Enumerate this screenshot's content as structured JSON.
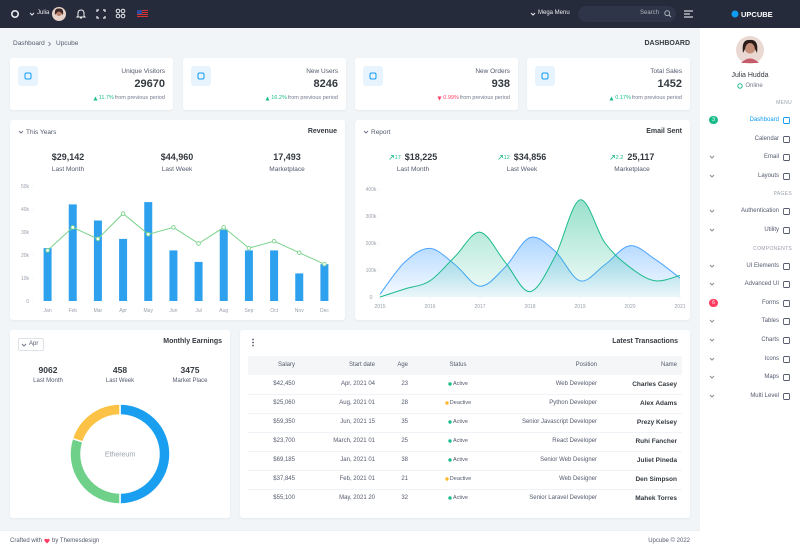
{
  "topbar": {
    "user": "Julia",
    "mega_menu": "Mega Menu",
    "search": "Search",
    "logo": "UPCUBE"
  },
  "sidebar": {
    "profile_name": "Julia Hudda",
    "status": "Online",
    "sections": [
      {
        "title": "MENU",
        "items": [
          {
            "label": "Dashboard",
            "badge": 3,
            "badge_color": "#1cbb8c",
            "active": true
          },
          {
            "label": "Calendar"
          },
          {
            "label": "Email",
            "has_submenu": true
          },
          {
            "label": "Layouts",
            "has_submenu": true
          }
        ]
      },
      {
        "title": "PAGES",
        "items": [
          {
            "label": "Authentication",
            "has_submenu": true
          },
          {
            "label": "Utility",
            "has_submenu": true
          }
        ]
      },
      {
        "title": "COMPONENTS",
        "items": [
          {
            "label": "UI Elements",
            "has_submenu": true
          },
          {
            "label": "Advanced UI",
            "has_submenu": true
          },
          {
            "label": "Forms",
            "badge": 6,
            "badge_color": "#ff3d60"
          },
          {
            "label": "Tables",
            "has_submenu": true
          },
          {
            "label": "Charts",
            "has_submenu": true
          },
          {
            "label": "Icons",
            "has_submenu": true
          },
          {
            "label": "Maps",
            "has_submenu": true
          },
          {
            "label": "Multi Level",
            "has_submenu": true
          }
        ]
      }
    ]
  },
  "breadcrumb": {
    "items": [
      "Dashboard",
      "Upcube"
    ],
    "page_title": "DASHBOARD"
  },
  "stats": [
    {
      "label": "Unique Visitors",
      "value": 29670,
      "change": "11.7%",
      "trend": "up",
      "note": "from previous period"
    },
    {
      "label": "New Users",
      "value": 8246,
      "change": "16.2%",
      "trend": "up",
      "note": "from previous period"
    },
    {
      "label": "New Orders",
      "value": 938,
      "change": "0.99%",
      "trend": "down",
      "note": "from previous period"
    },
    {
      "label": "Total Sales",
      "value": 1452,
      "change": "0.17%",
      "trend": "up",
      "note": "from previous period"
    }
  ],
  "revenue": {
    "filter": "This Years",
    "title": "Revenue",
    "summary": [
      {
        "value": "$29,142",
        "label": "Last Month"
      },
      {
        "value": "$44,960",
        "label": "Last Week"
      },
      {
        "value": "17,493",
        "label": "Marketplace"
      }
    ],
    "chart": {
      "type": "bar",
      "categories": [
        "Jan",
        "Feb",
        "Mar",
        "Apr",
        "May",
        "Jun",
        "Jul",
        "Aug",
        "Sep",
        "Oct",
        "Nov",
        "Dec"
      ],
      "series": [
        {
          "type": "bar",
          "color": "#2ea1ee",
          "values": [
            23000,
            42000,
            35000,
            27000,
            43000,
            22000,
            17000,
            31000,
            22000,
            22000,
            12000,
            16000
          ]
        },
        {
          "type": "line",
          "color": "#7bd38c",
          "values": [
            22000,
            32000,
            27000,
            38000,
            29000,
            32000,
            25000,
            32000,
            23000,
            26000,
            21000,
            16000
          ]
        }
      ],
      "ylim": [
        0,
        50000
      ],
      "yticks": [
        0,
        {
          "value": 10000,
          "label": "10k"
        },
        {
          "value": 20000,
          "label": "20k"
        },
        {
          "value": 30000,
          "label": "30k"
        },
        {
          "value": 40000,
          "label": "40k"
        },
        {
          "value": 50000,
          "label": "50k"
        }
      ]
    }
  },
  "report": {
    "filter": "Report",
    "title": "Email Sent",
    "summary": [
      {
        "change": 17,
        "value": "$18,225",
        "label": "Last Month"
      },
      {
        "change": 12,
        "value": "$34,856",
        "label": "Last Week"
      },
      {
        "change": 2.2,
        "value": "25,117",
        "label": "Marketplace"
      }
    ],
    "chart": {
      "type": "area",
      "x": [
        2015,
        2015.5,
        2016,
        2016.5,
        2017,
        2017.5,
        2018,
        2018.5,
        2019,
        2019.5,
        2020,
        2020.5,
        2021
      ],
      "series": [
        {
          "color": "#4aa3ff",
          "values": [
            10000,
            130000,
            180000,
            120000,
            40000,
            110000,
            220000,
            170000,
            60000,
            120000,
            190000,
            140000,
            70000
          ]
        },
        {
          "color": "#1cbb8c",
          "values": [
            0,
            30000,
            60000,
            150000,
            240000,
            130000,
            20000,
            150000,
            360000,
            200000,
            110000,
            60000,
            80000
          ]
        }
      ],
      "xlim": [
        2015,
        2021
      ],
      "xticks": [
        2015,
        2016,
        2017,
        2018,
        2019,
        2020,
        2021
      ],
      "ylim": [
        0,
        400000
      ],
      "yticks": [
        0,
        {
          "value": 100000,
          "label": "100k"
        },
        {
          "value": 200000,
          "label": "200k"
        },
        {
          "value": 300000,
          "label": "300k"
        },
        {
          "value": 400000,
          "label": "400k"
        }
      ]
    }
  },
  "earnings": {
    "filter": "Apr",
    "title": "Monthly Earnings",
    "summary": [
      {
        "value": 9062,
        "label": "Last Month"
      },
      {
        "value": 458,
        "label": "Last Week"
      },
      {
        "value": 3475,
        "label": "Market Place"
      }
    ],
    "chart": {
      "type": "donut",
      "center_label": "Ethereum",
      "values": [
        50,
        30,
        20
      ],
      "colors": [
        "#1a9ff0",
        "#6fd08a",
        "#fcc246"
      ]
    }
  },
  "transactions": {
    "title": "Latest Transactions",
    "headers": {
      "salary": "Salary",
      "start_date": "Start date",
      "age": "Age",
      "status": "Status",
      "position": "Position",
      "name": "Name"
    },
    "rows": [
      {
        "salary": "$42,450",
        "start_date": "Apr, 2021 04",
        "age": 23,
        "status": "Active",
        "status_color": "#1cbb8c",
        "position": "Web Developer",
        "name": "Charles Casey"
      },
      {
        "salary": "$25,060",
        "start_date": "Aug, 2021 01",
        "age": 28,
        "status": "Deactive",
        "status_color": "#fcb92c",
        "position": "Python Developer",
        "name": "Alex Adams"
      },
      {
        "salary": "$59,350",
        "start_date": "Jun, 2021 15",
        "age": 35,
        "status": "Active",
        "status_color": "#1cbb8c",
        "position": "Senior Javascript Developer",
        "name": "Prezy Kelsey"
      },
      {
        "salary": "$23,700",
        "start_date": "March, 2021 01",
        "age": 25,
        "status": "Active",
        "status_color": "#1cbb8c",
        "position": "React Developer",
        "name": "Ruhi Fancher"
      },
      {
        "salary": "$69,185",
        "start_date": "Jan, 2021 01",
        "age": 38,
        "status": "Active",
        "status_color": "#1cbb8c",
        "position": "Senior Web Designer",
        "name": "Juliet Pineda"
      },
      {
        "salary": "$37,845",
        "start_date": "Feb, 2021 01",
        "age": 21,
        "status": "Deactive",
        "status_color": "#fcb92c",
        "position": "Web Designer",
        "name": "Den Simpson"
      },
      {
        "salary": "$55,100",
        "start_date": "May, 2021 20",
        "age": 32,
        "status": "Active",
        "status_color": "#1cbb8c",
        "position": "Senior Laravel Developer",
        "name": "Mahek Torres"
      }
    ]
  },
  "footer": {
    "crafted": "Crafted with",
    "by": "by Themesdesign",
    "copyright": "Upcube © 2022"
  }
}
